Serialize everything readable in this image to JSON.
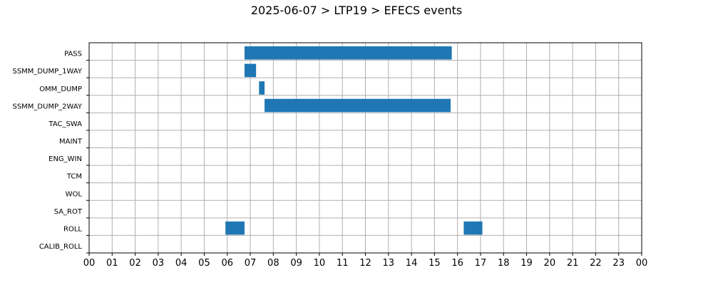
{
  "title": "2025-06-07 > LTP19 > EFECS events",
  "colors": {
    "bar": "#1f77b4",
    "grid": "#b0b0b0",
    "axis": "#000000"
  },
  "chart_data": {
    "type": "bar",
    "orientation": "horizontal-timeline",
    "title": "2025-06-07 > LTP19 > EFECS events",
    "xlabel": "",
    "ylabel": "",
    "xlim": [
      0,
      24
    ],
    "grid": true,
    "legend": "none",
    "categories": [
      "PASS",
      "SSMM_DUMP_1WAY",
      "OMM_DUMP",
      "SSMM_DUMP_2WAY",
      "TAC_SWA",
      "MAINT",
      "ENG_WIN",
      "TCM",
      "WOL",
      "SA_ROT",
      "ROLL",
      "CALIB_ROLL"
    ],
    "x_tick_labels": [
      "00",
      "01",
      "02",
      "03",
      "04",
      "05",
      "06",
      "07",
      "08",
      "09",
      "10",
      "11",
      "12",
      "13",
      "14",
      "15",
      "16",
      "17",
      "18",
      "19",
      "20",
      "21",
      "22",
      "23",
      "00"
    ],
    "events": [
      {
        "category": "PASS",
        "start": 6.75,
        "end": 15.75
      },
      {
        "category": "SSMM_DUMP_1WAY",
        "start": 6.75,
        "end": 7.25
      },
      {
        "category": "OMM_DUMP",
        "start": 7.38,
        "end": 7.62
      },
      {
        "category": "SSMM_DUMP_2WAY",
        "start": 7.62,
        "end": 15.7
      },
      {
        "category": "ROLL",
        "start": 5.92,
        "end": 6.75
      },
      {
        "category": "ROLL",
        "start": 16.27,
        "end": 17.08
      }
    ]
  }
}
